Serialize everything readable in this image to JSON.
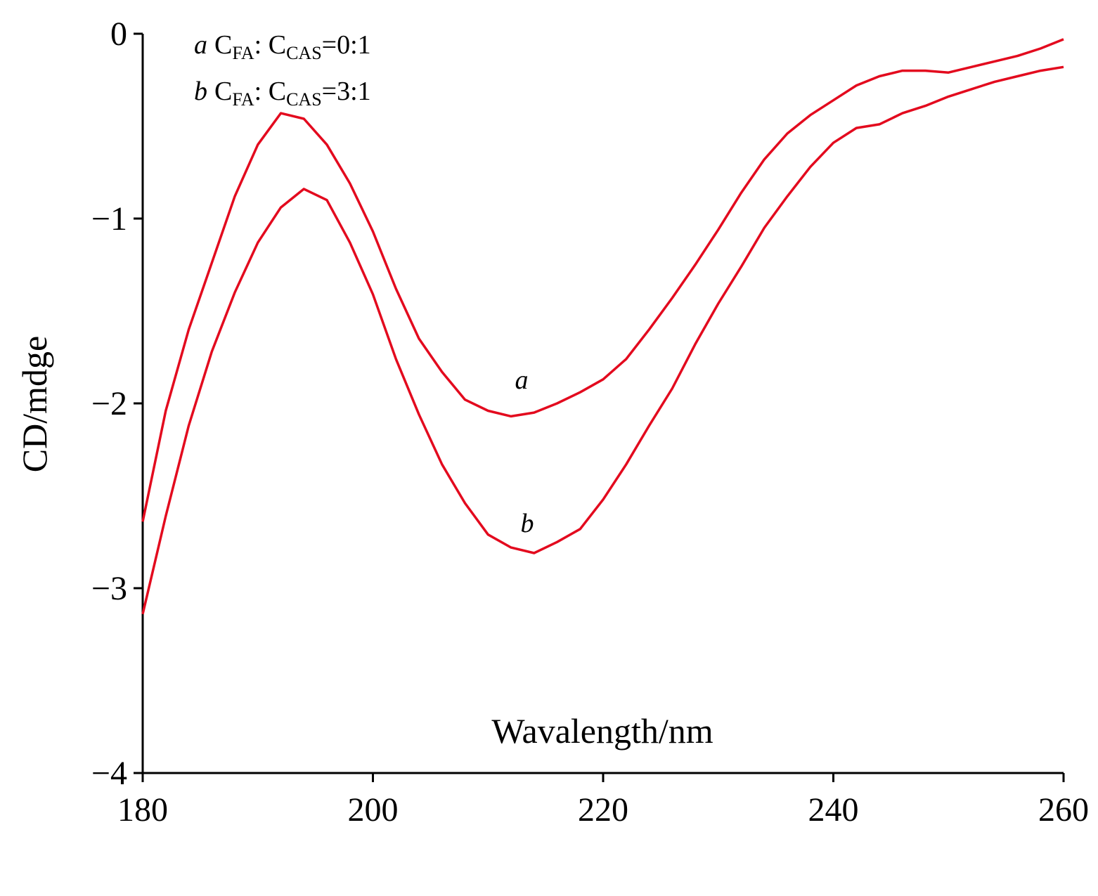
{
  "chart_data": {
    "type": "line",
    "x_label": "Wavalength/nm",
    "y_label": "CD/mdge",
    "x": [
      180,
      182,
      184,
      186,
      188,
      190,
      192,
      194,
      196,
      198,
      200,
      202,
      204,
      206,
      208,
      210,
      212,
      214,
      216,
      218,
      220,
      222,
      224,
      226,
      228,
      230,
      232,
      234,
      236,
      238,
      240,
      242,
      244,
      246,
      248,
      250,
      252,
      254,
      256,
      258,
      260
    ],
    "series": [
      {
        "label": "a",
        "name": [
          "C",
          "FA",
          ": C",
          "CAS",
          "=0:1"
        ],
        "color": "#e30a1e",
        "values": [
          -2.64,
          -2.04,
          -1.6,
          -1.24,
          -0.88,
          -0.6,
          -0.43,
          -0.46,
          -0.6,
          -0.81,
          -1.07,
          -1.38,
          -1.65,
          -1.83,
          -1.98,
          -2.04,
          -2.07,
          -2.05,
          -2.0,
          -1.94,
          -1.87,
          -1.76,
          -1.6,
          -1.43,
          -1.25,
          -1.06,
          -0.86,
          -0.68,
          -0.54,
          -0.44,
          -0.36,
          -0.28,
          -0.23,
          -0.2,
          -0.2,
          -0.21,
          -0.18,
          -0.15,
          -0.12,
          -0.08,
          -0.03
        ]
      },
      {
        "label": "b",
        "name": [
          "C",
          "FA",
          ": C",
          "CAS",
          "=3:1"
        ],
        "color": "#e30a1e",
        "values": [
          -3.14,
          -2.61,
          -2.12,
          -1.72,
          -1.4,
          -1.13,
          -0.94,
          -0.84,
          -0.9,
          -1.13,
          -1.41,
          -1.76,
          -2.06,
          -2.33,
          -2.54,
          -2.71,
          -2.78,
          -2.81,
          -2.75,
          -2.68,
          -2.52,
          -2.33,
          -2.12,
          -1.92,
          -1.68,
          -1.46,
          -1.26,
          -1.05,
          -0.88,
          -0.72,
          -0.59,
          -0.51,
          -0.49,
          -0.43,
          -0.39,
          -0.34,
          -0.3,
          -0.26,
          -0.23,
          -0.2,
          -0.18
        ]
      }
    ],
    "xlim": [
      180,
      260
    ],
    "xticks": [
      180,
      200,
      220,
      240,
      260
    ],
    "ylim": [
      -4,
      0
    ],
    "yticks": [
      0,
      {
        "value": -1,
        "label": "−1"
      },
      {
        "value": -2,
        "label": "−2"
      },
      {
        "value": -3,
        "label": "−3"
      },
      {
        "value": -4,
        "label": "−4"
      }
    ],
    "grid": false
  }
}
